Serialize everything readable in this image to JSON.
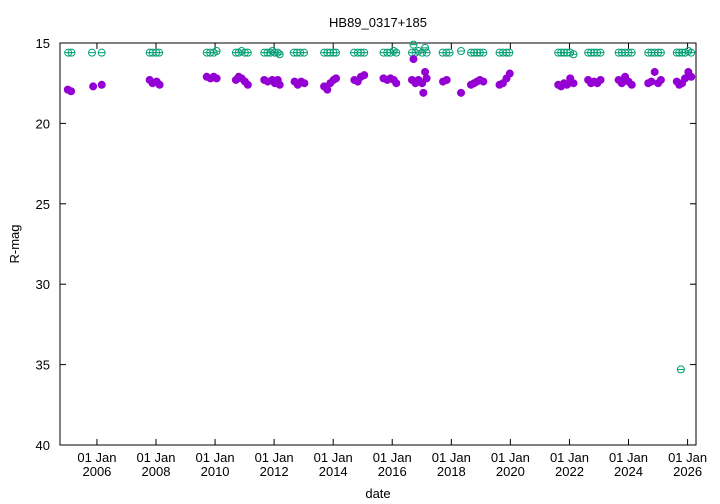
{
  "chart_data": {
    "type": "scatter",
    "title": "HB89_0317+185",
    "xlabel": "date",
    "ylabel": "R-mag",
    "x_type": "date",
    "xlim": [
      "2004-10-01",
      "2026-04-15"
    ],
    "ylim": [
      15,
      40
    ],
    "y_inverted": true,
    "grid": false,
    "legend": "none",
    "x_ticks": [
      {
        "date": "2006-01-01",
        "label1": "01 Jan",
        "label2": "2006"
      },
      {
        "date": "2008-01-01",
        "label1": "01 Jan",
        "label2": "2008"
      },
      {
        "date": "2010-01-01",
        "label1": "01 Jan",
        "label2": "2010"
      },
      {
        "date": "2012-01-01",
        "label1": "01 Jan",
        "label2": "2012"
      },
      {
        "date": "2014-01-01",
        "label1": "01 Jan",
        "label2": "2014"
      },
      {
        "date": "2016-01-01",
        "label1": "01 Jan",
        "label2": "2016"
      },
      {
        "date": "2018-01-01",
        "label1": "01 Jan",
        "label2": "2018"
      },
      {
        "date": "2020-01-01",
        "label1": "01 Jan",
        "label2": "2020"
      },
      {
        "date": "2022-01-01",
        "label1": "01 Jan",
        "label2": "2022"
      },
      {
        "date": "2024-01-01",
        "label1": "01 Jan",
        "label2": "2024"
      },
      {
        "date": "2026-01-01",
        "label1": "01 Jan",
        "label2": "2026"
      }
    ],
    "y_ticks": [
      15,
      20,
      25,
      30,
      35,
      40
    ],
    "series": [
      {
        "color": "#009e73",
        "marker": "open-circle",
        "points": [
          [
            "2005-01-10",
            15.6
          ],
          [
            "2005-02-20",
            15.6
          ],
          [
            "2005-11-01",
            15.6
          ],
          [
            "2006-03-01",
            15.6
          ],
          [
            "2007-10-15",
            15.6
          ],
          [
            "2007-11-20",
            15.6
          ],
          [
            "2008-01-05",
            15.6
          ],
          [
            "2008-02-10",
            15.6
          ],
          [
            "2009-09-20",
            15.6
          ],
          [
            "2009-11-01",
            15.6
          ],
          [
            "2009-12-15",
            15.6
          ],
          [
            "2010-01-20",
            15.5
          ],
          [
            "2010-09-15",
            15.6
          ],
          [
            "2010-10-20",
            15.6
          ],
          [
            "2010-11-25",
            15.5
          ],
          [
            "2011-01-05",
            15.6
          ],
          [
            "2011-02-10",
            15.6
          ],
          [
            "2011-09-01",
            15.6
          ],
          [
            "2011-10-10",
            15.6
          ],
          [
            "2011-11-15",
            15.6
          ],
          [
            "2011-12-10",
            15.5
          ],
          [
            "2012-01-10",
            15.6
          ],
          [
            "2012-02-15",
            15.6
          ],
          [
            "2012-03-10",
            15.7
          ],
          [
            "2012-09-01",
            15.6
          ],
          [
            "2012-10-10",
            15.6
          ],
          [
            "2012-11-20",
            15.6
          ],
          [
            "2013-01-05",
            15.6
          ],
          [
            "2013-09-10",
            15.6
          ],
          [
            "2013-10-20",
            15.6
          ],
          [
            "2013-11-25",
            15.6
          ],
          [
            "2014-01-05",
            15.6
          ],
          [
            "2014-02-05",
            15.6
          ],
          [
            "2014-09-15",
            15.6
          ],
          [
            "2014-11-01",
            15.6
          ],
          [
            "2014-12-10",
            15.6
          ],
          [
            "2015-01-20",
            15.6
          ],
          [
            "2015-09-15",
            15.6
          ],
          [
            "2015-11-01",
            15.6
          ],
          [
            "2015-12-10",
            15.6
          ],
          [
            "2016-01-20",
            15.5
          ],
          [
            "2016-02-20",
            15.6
          ],
          [
            "2016-09-01",
            15.6
          ],
          [
            "2016-09-20",
            15.1
          ],
          [
            "2016-10-15",
            15.6
          ],
          [
            "2016-11-20",
            15.5
          ],
          [
            "2017-01-05",
            15.6
          ],
          [
            "2017-02-10",
            15.3
          ],
          [
            "2017-03-01",
            15.6
          ],
          [
            "2017-09-15",
            15.6
          ],
          [
            "2017-11-01",
            15.6
          ],
          [
            "2017-12-10",
            15.6
          ],
          [
            "2018-05-01",
            15.5
          ],
          [
            "2018-09-01",
            15.6
          ],
          [
            "2018-10-10",
            15.6
          ],
          [
            "2018-11-15",
            15.6
          ],
          [
            "2018-12-20",
            15.6
          ],
          [
            "2019-02-01",
            15.6
          ],
          [
            "2019-08-20",
            15.6
          ],
          [
            "2019-10-01",
            15.6
          ],
          [
            "2019-11-15",
            15.6
          ],
          [
            "2019-12-20",
            15.6
          ],
          [
            "2021-08-15",
            15.6
          ],
          [
            "2021-09-20",
            15.6
          ],
          [
            "2021-10-25",
            15.6
          ],
          [
            "2021-12-01",
            15.6
          ],
          [
            "2022-01-10",
            15.6
          ],
          [
            "2022-02-20",
            15.7
          ],
          [
            "2022-08-20",
            15.6
          ],
          [
            "2022-09-25",
            15.6
          ],
          [
            "2022-11-01",
            15.6
          ],
          [
            "2022-12-10",
            15.6
          ],
          [
            "2023-01-20",
            15.6
          ],
          [
            "2023-09-01",
            15.6
          ],
          [
            "2023-10-10",
            15.6
          ],
          [
            "2023-11-20",
            15.6
          ],
          [
            "2024-01-01",
            15.6
          ],
          [
            "2024-02-10",
            15.6
          ],
          [
            "2024-09-01",
            15.6
          ],
          [
            "2024-10-10",
            15.6
          ],
          [
            "2024-11-20",
            15.6
          ],
          [
            "2025-01-01",
            15.6
          ],
          [
            "2025-02-05",
            15.6
          ],
          [
            "2025-08-20",
            15.6
          ],
          [
            "2025-09-20",
            15.6
          ],
          [
            "2025-10-10",
            35.3
          ],
          [
            "2025-10-25",
            15.6
          ],
          [
            "2025-12-01",
            15.6
          ],
          [
            "2026-01-10",
            15.5
          ],
          [
            "2026-02-15",
            15.6
          ]
        ]
      },
      {
        "color": "#9400d3",
        "marker": "filled-circle",
        "points": [
          [
            "2005-01-05",
            17.9
          ],
          [
            "2005-02-15",
            18.0
          ],
          [
            "2005-11-15",
            17.7
          ],
          [
            "2006-03-01",
            17.6
          ],
          [
            "2007-10-15",
            17.3
          ],
          [
            "2007-11-20",
            17.5
          ],
          [
            "2008-01-10",
            17.4
          ],
          [
            "2008-02-15",
            17.6
          ],
          [
            "2009-09-20",
            17.1
          ],
          [
            "2009-11-05",
            17.2
          ],
          [
            "2009-12-15",
            17.1
          ],
          [
            "2010-01-20",
            17.2
          ],
          [
            "2010-09-15",
            17.3
          ],
          [
            "2010-10-20",
            17.1
          ],
          [
            "2010-11-25",
            17.2
          ],
          [
            "2011-01-05",
            17.4
          ],
          [
            "2011-02-10",
            17.6
          ],
          [
            "2011-09-01",
            17.3
          ],
          [
            "2011-10-15",
            17.4
          ],
          [
            "2011-12-10",
            17.3
          ],
          [
            "2012-01-10",
            17.5
          ],
          [
            "2012-02-15",
            17.3
          ],
          [
            "2012-03-10",
            17.6
          ],
          [
            "2012-09-10",
            17.4
          ],
          [
            "2012-10-20",
            17.6
          ],
          [
            "2012-12-01",
            17.4
          ],
          [
            "2013-01-10",
            17.5
          ],
          [
            "2013-09-10",
            17.7
          ],
          [
            "2013-10-20",
            17.9
          ],
          [
            "2013-11-25",
            17.5
          ],
          [
            "2014-01-05",
            17.3
          ],
          [
            "2014-02-05",
            17.2
          ],
          [
            "2014-09-20",
            17.3
          ],
          [
            "2014-11-01",
            17.4
          ],
          [
            "2014-12-10",
            17.1
          ],
          [
            "2015-01-20",
            17.0
          ],
          [
            "2015-09-15",
            17.2
          ],
          [
            "2015-11-01",
            17.3
          ],
          [
            "2015-12-10",
            17.2
          ],
          [
            "2016-01-20",
            17.3
          ],
          [
            "2016-02-20",
            17.5
          ],
          [
            "2016-09-01",
            17.3
          ],
          [
            "2016-09-20",
            16.0
          ],
          [
            "2016-10-15",
            17.5
          ],
          [
            "2016-11-20",
            17.3
          ],
          [
            "2017-01-05",
            17.5
          ],
          [
            "2017-01-20",
            18.1
          ],
          [
            "2017-02-10",
            16.8
          ],
          [
            "2017-03-01",
            17.2
          ],
          [
            "2017-09-20",
            17.4
          ],
          [
            "2017-11-05",
            17.3
          ],
          [
            "2018-05-01",
            18.1
          ],
          [
            "2018-09-01",
            17.6
          ],
          [
            "2018-10-10",
            17.5
          ],
          [
            "2018-11-15",
            17.4
          ],
          [
            "2018-12-20",
            17.3
          ],
          [
            "2019-02-01",
            17.4
          ],
          [
            "2019-08-20",
            17.6
          ],
          [
            "2019-10-01",
            17.5
          ],
          [
            "2019-11-15",
            17.2
          ],
          [
            "2019-12-25",
            16.9
          ],
          [
            "2021-08-15",
            17.6
          ],
          [
            "2021-09-20",
            17.7
          ],
          [
            "2021-10-25",
            17.5
          ],
          [
            "2021-12-01",
            17.6
          ],
          [
            "2022-01-10",
            17.2
          ],
          [
            "2022-02-20",
            17.5
          ],
          [
            "2022-08-20",
            17.3
          ],
          [
            "2022-09-25",
            17.5
          ],
          [
            "2022-11-01",
            17.4
          ],
          [
            "2022-12-10",
            17.5
          ],
          [
            "2023-01-20",
            17.3
          ],
          [
            "2023-09-01",
            17.3
          ],
          [
            "2023-10-10",
            17.5
          ],
          [
            "2023-11-20",
            17.1
          ],
          [
            "2024-01-01",
            17.4
          ],
          [
            "2024-02-10",
            17.6
          ],
          [
            "2024-09-01",
            17.5
          ],
          [
            "2024-10-10",
            17.4
          ],
          [
            "2024-11-20",
            16.8
          ],
          [
            "2025-01-01",
            17.5
          ],
          [
            "2025-02-05",
            17.3
          ],
          [
            "2025-08-20",
            17.4
          ],
          [
            "2025-09-20",
            17.6
          ],
          [
            "2025-10-25",
            17.5
          ],
          [
            "2025-12-01",
            17.2
          ],
          [
            "2026-01-10",
            16.8
          ],
          [
            "2026-02-15",
            17.1
          ]
        ]
      }
    ]
  }
}
